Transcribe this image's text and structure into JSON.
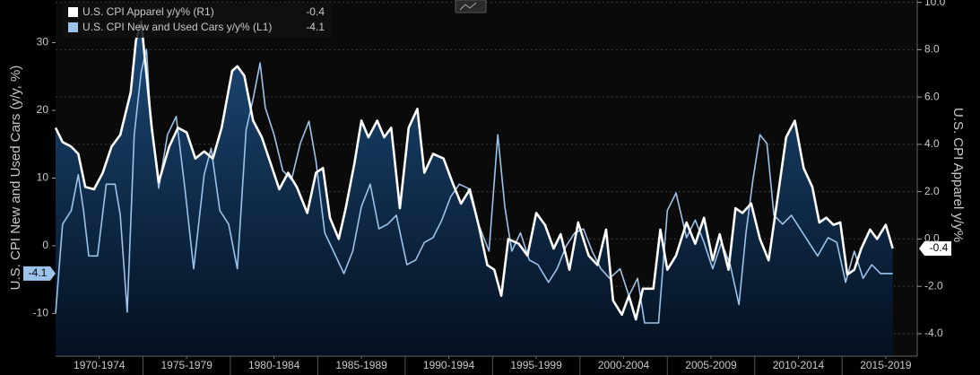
{
  "chart_data": {
    "type": "line",
    "left_axis_label": "U.S. CPI New and Used Cars (y/y, %)",
    "right_axis_label": "U.S. CPI Apparel y/y%",
    "xlim": [
      1970.0,
      2019.3
    ],
    "xticks": [
      {
        "value": 1972.5,
        "label": "1970-1974"
      },
      {
        "value": 1977.5,
        "label": "1975-1979"
      },
      {
        "value": 1982.5,
        "label": "1980-1984"
      },
      {
        "value": 1987.5,
        "label": "1985-1989"
      },
      {
        "value": 1992.5,
        "label": "1990-1994"
      },
      {
        "value": 1997.5,
        "label": "1995-1999"
      },
      {
        "value": 2002.5,
        "label": "2000-2004"
      },
      {
        "value": 2007.5,
        "label": "2005-2009"
      },
      {
        "value": 2012.5,
        "label": "2010-2014"
      },
      {
        "value": 2017.5,
        "label": "2015-2019"
      }
    ],
    "ylim": [
      -16.3,
      36.3
    ],
    "yticks": [
      -10,
      0,
      10,
      20,
      30
    ],
    "y2lim": [
      -4.95,
      10.1
    ],
    "y2ticks": [
      {
        "value": -4,
        "label": "-4.0"
      },
      {
        "value": -2,
        "label": "-2.0"
      },
      {
        "value": 0,
        "label": "0.0"
      },
      {
        "value": 2,
        "label": "2.0"
      },
      {
        "value": 4,
        "label": "4.0"
      },
      {
        "value": 6,
        "label": "6.0"
      },
      {
        "value": 8,
        "label": "8.0"
      },
      {
        "value": 10,
        "label": "10.0"
      }
    ],
    "grid": true,
    "series": [
      {
        "name": "U.S. CPI Apparel y/y% (R1)",
        "color": "#ffffff",
        "axis": "y2",
        "area": true,
        "last_label": "-0.4",
        "x": [
          1970.0,
          1970.4,
          1970.9,
          1971.3,
          1971.7,
          1972.2,
          1972.7,
          1973.2,
          1973.7,
          1974.3,
          1974.6,
          1974.9,
          1975.1,
          1975.5,
          1975.9,
          1976.5,
          1977.0,
          1977.5,
          1978.0,
          1978.5,
          1979.0,
          1979.5,
          1980.1,
          1980.4,
          1980.8,
          1981.3,
          1981.8,
          1982.3,
          1982.8,
          1983.3,
          1983.8,
          1984.4,
          1984.9,
          1985.3,
          1985.7,
          1986.2,
          1986.6,
          1987.1,
          1987.5,
          1987.9,
          1988.4,
          1988.8,
          1989.2,
          1989.7,
          1990.2,
          1990.7,
          1991.1,
          1991.6,
          1992.2,
          1992.7,
          1993.2,
          1993.7,
          1994.2,
          1994.7,
          1995.1,
          1995.5,
          1995.9,
          1996.5,
          1997.0,
          1997.5,
          1998.0,
          1998.5,
          1998.9,
          1999.4,
          1999.9,
          2000.5,
          2001.0,
          2001.5,
          2001.9,
          2002.4,
          2002.8,
          2003.2,
          2003.6,
          2004.2,
          2004.6,
          2005.0,
          2005.5,
          2006.1,
          2006.6,
          2007.1,
          2007.6,
          2008.0,
          2008.5,
          2008.9,
          2009.3,
          2009.8,
          2010.3,
          2010.8,
          2011.3,
          2011.8,
          2012.3,
          2012.8,
          2013.3,
          2013.7,
          2014.1,
          2014.5,
          2014.9,
          2015.3,
          2015.7,
          2016.1,
          2016.6,
          2017.0,
          2017.5,
          2017.9
        ],
        "values": [
          4.7,
          4.1,
          3.9,
          3.6,
          2.2,
          2.1,
          2.8,
          3.9,
          4.4,
          6.2,
          8.4,
          9.2,
          7.7,
          4.7,
          2.4,
          3.9,
          4.7,
          4.5,
          3.4,
          3.7,
          3.4,
          4.7,
          7.1,
          7.3,
          6.9,
          5.0,
          4.3,
          3.2,
          2.1,
          2.8,
          2.2,
          1.1,
          2.8,
          3.0,
          0.9,
          0,
          1.3,
          3.2,
          5.0,
          4.3,
          5.0,
          4.3,
          4.7,
          1.3,
          4.7,
          5.5,
          2.8,
          3.6,
          3.4,
          2.4,
          1.5,
          2.1,
          0.6,
          -1.1,
          -1.3,
          -2.4,
          0,
          -0.2,
          -0.7,
          1.1,
          0.6,
          -0.4,
          0.2,
          -1.3,
          0.7,
          -0.7,
          -1.1,
          0.4,
          -2.6,
          -3.2,
          -2.4,
          -3.4,
          -2.1,
          -2.1,
          0.4,
          -1.3,
          -0.7,
          0.7,
          -0.2,
          0.9,
          -0.9,
          0.2,
          -1.3,
          1.3,
          1.1,
          1.5,
          0,
          -0.9,
          1.7,
          4.3,
          5.0,
          3.0,
          2.2,
          0.7,
          0.9,
          0.6,
          0.7,
          -1.5,
          -1.3,
          -0.4,
          0.4,
          0,
          0.6,
          -0.4
        ]
      },
      {
        "name": "U.S. CPI New and Used Cars y/y%  (L1)",
        "color": "#9cc3ea",
        "axis": "y",
        "last_label": "-4.1",
        "x": [
          1970.0,
          1970.4,
          1970.9,
          1971.3,
          1971.6,
          1971.9,
          1972.4,
          1972.9,
          1973.4,
          1973.7,
          1974.1,
          1974.5,
          1974.9,
          1975.2,
          1975.4,
          1975.9,
          1976.4,
          1976.9,
          1977.4,
          1977.9,
          1978.5,
          1978.9,
          1979.4,
          1979.9,
          1980.4,
          1980.9,
          1981.3,
          1981.7,
          1982.0,
          1982.5,
          1983.0,
          1983.5,
          1984.0,
          1984.5,
          1984.9,
          1985.4,
          1985.9,
          1986.5,
          1987.0,
          1987.5,
          1988.0,
          1988.5,
          1989.0,
          1989.5,
          1990.1,
          1990.6,
          1991.1,
          1991.6,
          1992.1,
          1992.6,
          1993.1,
          1993.6,
          1994.2,
          1994.8,
          1995.3,
          1995.7,
          1996.1,
          1996.6,
          1997.1,
          1997.6,
          1998.2,
          1998.7,
          1999.2,
          1999.7,
          2000.2,
          2000.7,
          2001.2,
          2001.7,
          2002.3,
          2002.8,
          2003.3,
          2003.7,
          2004.5,
          2005.0,
          2005.5,
          2006.1,
          2006.6,
          2007.1,
          2007.6,
          2008.1,
          2008.6,
          2009.1,
          2009.5,
          2009.9,
          2010.3,
          2010.7,
          2011.1,
          2011.6,
          2012.1,
          2012.6,
          2013.1,
          2013.6,
          2014.2,
          2014.7,
          2015.2,
          2015.7,
          2016.2,
          2016.7,
          2017.2,
          2017.9
        ],
        "values": [
          -10,
          3.2,
          5.2,
          10.5,
          5.2,
          -1.5,
          -1.5,
          9.1,
          9.1,
          4.6,
          -9.8,
          16.4,
          25.7,
          29,
          20.4,
          8.5,
          16.4,
          19.1,
          8.5,
          -3.4,
          10.5,
          14.4,
          5.2,
          3.2,
          -3.4,
          17.1,
          21.7,
          27,
          20.4,
          16.4,
          11.1,
          9.8,
          15.1,
          18.4,
          12.5,
          1.9,
          -0.8,
          -4.1,
          -0.8,
          5.8,
          9.1,
          2.5,
          3.2,
          4.5,
          -2.8,
          -2.1,
          0.5,
          1.2,
          3.8,
          7.2,
          9.1,
          8.5,
          3.2,
          -0.8,
          16.4,
          5.8,
          -0.8,
          1.9,
          -2.1,
          -2.8,
          -5.4,
          -3.4,
          -0.1,
          1.9,
          2.5,
          -0.8,
          -3.4,
          -4.8,
          -3.4,
          -7.4,
          -4.8,
          -11.4,
          -11.4,
          5.2,
          7.8,
          1.2,
          3.8,
          0.5,
          -3.4,
          0.5,
          -2.8,
          -8.7,
          1.9,
          9.8,
          16.4,
          15.1,
          4.5,
          3.2,
          4.5,
          2.5,
          0.5,
          -1.5,
          1.2,
          0.5,
          -5.4,
          -0.8,
          -4.8,
          -2.8,
          -4.1,
          -4.1
        ]
      }
    ]
  }
}
